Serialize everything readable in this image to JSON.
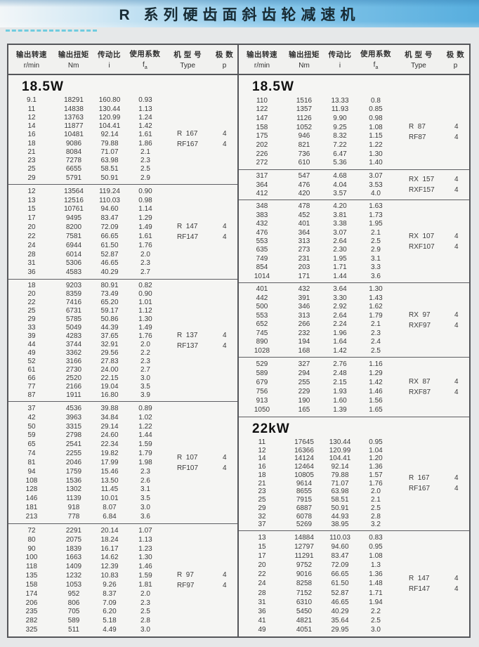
{
  "title": "R 系列硬齿面斜齿轮减速机",
  "colors": {
    "banner_blue": "#57aede",
    "dash_accent": "#5cc8de",
    "table_background": "#f5f5f3",
    "border_gray": "#55565a",
    "text_gray": "#3a3a3a"
  },
  "columns": [
    {
      "label": "输出转速",
      "unit": "r/min"
    },
    {
      "label": "输出扭矩",
      "unit": "Nm"
    },
    {
      "label": "传动比",
      "unit": "i"
    },
    {
      "label": "使用系数",
      "unit": "f",
      "sub": "a"
    },
    {
      "label": "机 型 号",
      "unit": "Type"
    },
    {
      "label": "极  数",
      "unit": "p"
    }
  ],
  "tables": {
    "left": {
      "sections": [
        {
          "power": "18.5W",
          "models": [
            {
              "name": "R  167",
              "poles": "4"
            },
            {
              "name": "RF167",
              "poles": "4"
            }
          ],
          "rows": [
            [
              "9.1",
              "18291",
              "160.80",
              "0.93"
            ],
            [
              "11",
              "14838",
              "130.44",
              "1.13"
            ],
            [
              "12",
              "13763",
              "120.99",
              "1.24"
            ],
            [
              "14",
              "11877",
              "104.41",
              "1.42"
            ],
            [
              "16",
              "10481",
              "92.14",
              "1.61"
            ],
            [
              "18",
              "9086",
              "79.88",
              "1.86"
            ],
            [
              "21",
              "8084",
              "71.07",
              "2.1"
            ],
            [
              "23",
              "7278",
              "63.98",
              "2.3"
            ],
            [
              "25",
              "6655",
              "58.51",
              "2.5"
            ],
            [
              "29",
              "5791",
              "50.91",
              "2.9"
            ]
          ]
        },
        {
          "models": [
            {
              "name": "R  147",
              "poles": "4"
            },
            {
              "name": "RF147",
              "poles": "4"
            }
          ],
          "rows": [
            [
              "12",
              "13564",
              "119.24",
              "0.90"
            ],
            [
              "13",
              "12516",
              "110.03",
              "0.98"
            ],
            [
              "15",
              "10761",
              "94.60",
              "1.14"
            ],
            [
              "17",
              "9495",
              "83.47",
              "1.29"
            ],
            [
              "20",
              "8200",
              "72.09",
              "1.49"
            ],
            [
              "22",
              "7581",
              "66.65",
              "1.61"
            ],
            [
              "24",
              "6944",
              "61.50",
              "1.76"
            ],
            [
              "28",
              "6014",
              "52.87",
              "2.0"
            ],
            [
              "31",
              "5306",
              "46.65",
              "2.3"
            ],
            [
              "36",
              "4583",
              "40.29",
              "2.7"
            ]
          ]
        },
        {
          "models": [
            {
              "name": "R  137",
              "poles": "4"
            },
            {
              "name": "RF137",
              "poles": "4"
            }
          ],
          "rows": [
            [
              "18",
              "9203",
              "80.91",
              "0.82"
            ],
            [
              "20",
              "8359",
              "73.49",
              "0.90"
            ],
            [
              "22",
              "7416",
              "65.20",
              "1.01"
            ],
            [
              "25",
              "6731",
              "59.17",
              "1.12"
            ],
            [
              "29",
              "5785",
              "50.86",
              "1.30"
            ],
            [
              "33",
              "5049",
              "44.39",
              "1.49"
            ],
            [
              "39",
              "4283",
              "37.65",
              "1.76"
            ],
            [
              "44",
              "3744",
              "32.91",
              "2.0"
            ],
            [
              "49",
              "3362",
              "29.56",
              "2.2"
            ],
            [
              "52",
              "3166",
              "27.83",
              "2.3"
            ],
            [
              "61",
              "2730",
              "24.00",
              "2.7"
            ],
            [
              "66",
              "2520",
              "22.15",
              "3.0"
            ],
            [
              "77",
              "2166",
              "19.04",
              "3.5"
            ],
            [
              "87",
              "1911",
              "16.80",
              "3.9"
            ]
          ]
        },
        {
          "models": [
            {
              "name": "R  107",
              "poles": "4"
            },
            {
              "name": "RF107",
              "poles": "4"
            }
          ],
          "rows": [
            [
              "37",
              "4536",
              "39.88",
              "0.89"
            ],
            [
              "42",
              "3963",
              "34.84",
              "1.02"
            ],
            [
              "50",
              "3315",
              "29.14",
              "1.22"
            ],
            [
              "59",
              "2798",
              "24.60",
              "1.44"
            ],
            [
              "65",
              "2541",
              "22.34",
              "1.59"
            ],
            [
              "74",
              "2255",
              "19.82",
              "1.79"
            ],
            [
              "81",
              "2046",
              "17.99",
              "1.98"
            ],
            [
              "94",
              "1759",
              "15.46",
              "2.3"
            ],
            [
              "108",
              "1536",
              "13.50",
              "2.6"
            ],
            [
              "128",
              "1302",
              "11.45",
              "3.1"
            ],
            [
              "146",
              "1139",
              "10.01",
              "3.5"
            ],
            [
              "181",
              "918",
              "8.07",
              "3.0"
            ],
            [
              "213",
              "778",
              "6.84",
              "3.6"
            ]
          ]
        },
        {
          "models": [
            {
              "name": "R  97",
              "poles": "4"
            },
            {
              "name": "RF97",
              "poles": "4"
            }
          ],
          "rows": [
            [
              "72",
              "2291",
              "20.14",
              "1.07"
            ],
            [
              "80",
              "2075",
              "18.24",
              "1.13"
            ],
            [
              "90",
              "1839",
              "16.17",
              "1.23"
            ],
            [
              "100",
              "1663",
              "14.62",
              "1.30"
            ],
            [
              "118",
              "1409",
              "12.39",
              "1.46"
            ],
            [
              "135",
              "1232",
              "10.83",
              "1.59"
            ],
            [
              "158",
              "1053",
              "9.26",
              "1.81"
            ],
            [
              "174",
              "952",
              "8.37",
              "2.0"
            ],
            [
              "206",
              "806",
              "7.09",
              "2.3"
            ],
            [
              "235",
              "705",
              "6.20",
              "2.5"
            ],
            [
              "282",
              "589",
              "5.18",
              "2.8"
            ],
            [
              "325",
              "511",
              "4.49",
              "3.0"
            ]
          ]
        }
      ]
    },
    "right": {
      "sections": [
        {
          "power": "18.5W",
          "models": [
            {
              "name": "R  87",
              "poles": "4"
            },
            {
              "name": "RF87",
              "poles": "4"
            }
          ],
          "rows": [
            [
              "110",
              "1516",
              "13.33",
              "0.8"
            ],
            [
              "122",
              "1357",
              "11.93",
              "0.85"
            ],
            [
              "147",
              "1126",
              "9.90",
              "0.98"
            ],
            [
              "158",
              "1052",
              "9.25",
              "1.08"
            ],
            [
              "175",
              "946",
              "8.32",
              "1.15"
            ],
            [
              "202",
              "821",
              "7.22",
              "1.22"
            ],
            [
              "226",
              "736",
              "6.47",
              "1.30"
            ],
            [
              "272",
              "610",
              "5.36",
              "1.40"
            ]
          ]
        },
        {
          "models": [
            {
              "name": "RX  157",
              "poles": "4"
            },
            {
              "name": "RXF157",
              "poles": "4"
            }
          ],
          "rows": [
            [
              "317",
              "547",
              "4.68",
              "3.07"
            ],
            [
              "364",
              "476",
              "4.04",
              "3.53"
            ],
            [
              "412",
              "420",
              "3.57",
              "4.0"
            ]
          ]
        },
        {
          "models": [
            {
              "name": "RX  107",
              "poles": "4"
            },
            {
              "name": "RXF107",
              "poles": "4"
            }
          ],
          "rows": [
            [
              "348",
              "478",
              "4.20",
              "1.63"
            ],
            [
              "383",
              "452",
              "3.81",
              "1.73"
            ],
            [
              "432",
              "401",
              "3.38",
              "1.95"
            ],
            [
              "476",
              "364",
              "3.07",
              "2.1"
            ],
            [
              "553",
              "313",
              "2.64",
              "2.5"
            ],
            [
              "635",
              "273",
              "2.30",
              "2.9"
            ],
            [
              "749",
              "231",
              "1.95",
              "3.1"
            ],
            [
              "854",
              "203",
              "1.71",
              "3.3"
            ],
            [
              "1014",
              "171",
              "1.44",
              "3.6"
            ]
          ]
        },
        {
          "models": [
            {
              "name": "RX  97",
              "poles": "4"
            },
            {
              "name": "RXF97",
              "poles": "4"
            }
          ],
          "rows": [
            [
              "401",
              "432",
              "3.64",
              "1.30"
            ],
            [
              "442",
              "391",
              "3.30",
              "1.43"
            ],
            [
              "500",
              "346",
              "2.92",
              "1.62"
            ],
            [
              "553",
              "313",
              "2.64",
              "1.79"
            ],
            [
              "652",
              "266",
              "2.24",
              "2.1"
            ],
            [
              "745",
              "232",
              "1.96",
              "2.3"
            ],
            [
              "890",
              "194",
              "1.64",
              "2.4"
            ],
            [
              "1028",
              "168",
              "1.42",
              "2.5"
            ]
          ]
        },
        {
          "models": [
            {
              "name": "RX  87",
              "poles": "4"
            },
            {
              "name": "RXF87",
              "poles": "4"
            }
          ],
          "rows": [
            [
              "529",
              "327",
              "2.76",
              "1.16"
            ],
            [
              "589",
              "294",
              "2.48",
              "1.29"
            ],
            [
              "679",
              "255",
              "2.15",
              "1.42"
            ],
            [
              "756",
              "229",
              "1.93",
              "1.46"
            ],
            [
              "913",
              "190",
              "1.60",
              "1.56"
            ],
            [
              "1050",
              "165",
              "1.39",
              "1.65"
            ]
          ]
        },
        {
          "power": "22kW",
          "models": [
            {
              "name": "R  167",
              "poles": "4"
            },
            {
              "name": "RF167",
              "poles": "4"
            }
          ],
          "rows": [
            [
              "11",
              "17645",
              "130.44",
              "0.95"
            ],
            [
              "12",
              "16366",
              "120.99",
              "1.04"
            ],
            [
              "14",
              "14124",
              "104.41",
              "1.20"
            ],
            [
              "16",
              "12464",
              "92.14",
              "1.36"
            ],
            [
              "18",
              "10805",
              "79.88",
              "1.57"
            ],
            [
              "21",
              "9614",
              "71.07",
              "1.76"
            ],
            [
              "23",
              "8655",
              "63.98",
              "2.0"
            ],
            [
              "25",
              "7915",
              "58.51",
              "2.1"
            ],
            [
              "29",
              "6887",
              "50.91",
              "2.5"
            ],
            [
              "32",
              "6078",
              "44.93",
              "2.8"
            ],
            [
              "37",
              "5269",
              "38.95",
              "3.2"
            ]
          ]
        },
        {
          "models": [
            {
              "name": "R  147",
              "poles": "4"
            },
            {
              "name": "RF147",
              "poles": "4"
            }
          ],
          "rows": [
            [
              "13",
              "14884",
              "110.03",
              "0.83"
            ],
            [
              "15",
              "12797",
              "94.60",
              "0.95"
            ],
            [
              "17",
              "11291",
              "83.47",
              "1.08"
            ],
            [
              "20",
              "9752",
              "72.09",
              "1.3"
            ],
            [
              "22",
              "9016",
              "66.65",
              "1.36"
            ],
            [
              "24",
              "8258",
              "61.50",
              "1.48"
            ],
            [
              "28",
              "7152",
              "52.87",
              "1.71"
            ],
            [
              "31",
              "6310",
              "46.65",
              "1.94"
            ],
            [
              "36",
              "5450",
              "40.29",
              "2.2"
            ],
            [
              "41",
              "4821",
              "35.64",
              "2.5"
            ],
            [
              "49",
              "4051",
              "29.95",
              "3.0"
            ]
          ]
        }
      ]
    }
  }
}
